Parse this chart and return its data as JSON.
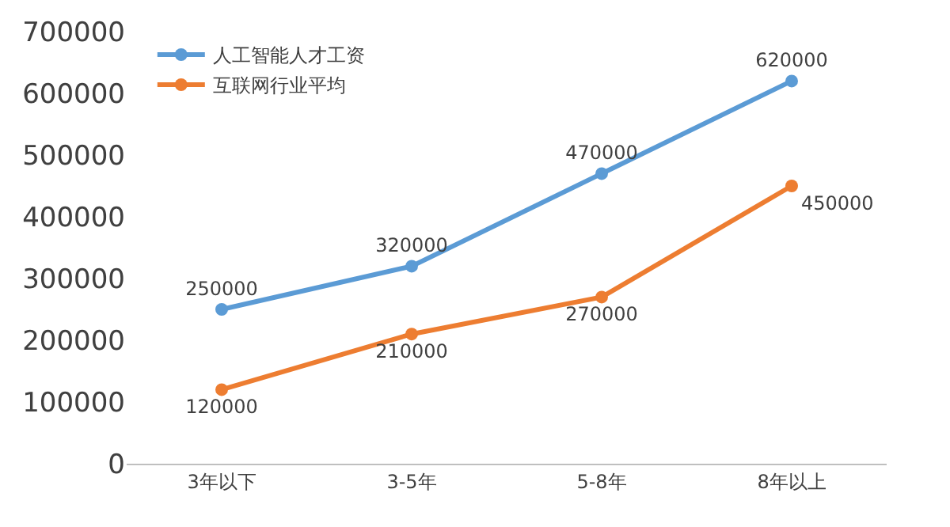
{
  "chart_data": {
    "type": "line",
    "categories": [
      "3年以下",
      "3-5年",
      "5-8年",
      "8年以上"
    ],
    "series": [
      {
        "name": "人工智能人才工资",
        "color": "#5b9bd5",
        "values": [
          250000,
          320000,
          470000,
          620000
        ]
      },
      {
        "name": "互联网行业平均",
        "color": "#ed7d31",
        "values": [
          120000,
          210000,
          270000,
          450000
        ]
      }
    ],
    "ylim": [
      0,
      700000
    ],
    "yticks": [
      0,
      100000,
      200000,
      300000,
      400000,
      500000,
      600000,
      700000
    ],
    "legend": "top left",
    "marker": "circle",
    "line_style": "solid",
    "data_labels": true
  }
}
